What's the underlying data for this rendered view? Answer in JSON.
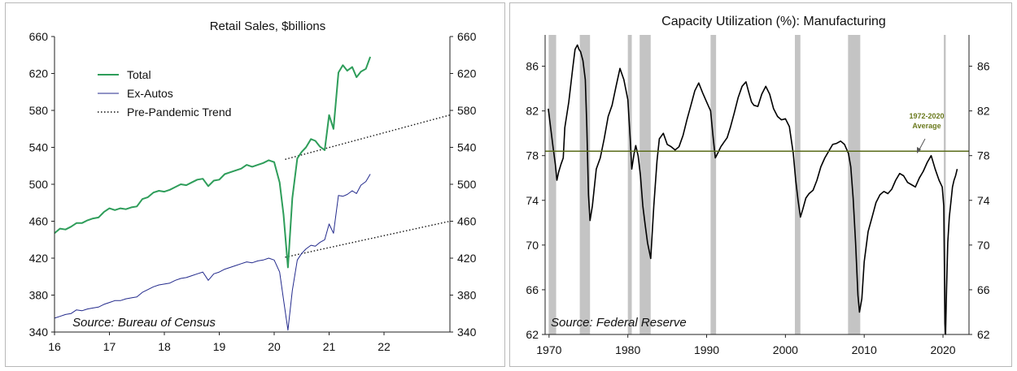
{
  "chart_data": [
    {
      "type": "line",
      "title": "Retail Sales, $billions",
      "source": "Source: Bureau of Census",
      "x_ticks": [
        16,
        17,
        18,
        19,
        20,
        21,
        22
      ],
      "x_tick_labels": [
        "16",
        "17",
        "18",
        "19",
        "20",
        "21",
        "22"
      ],
      "xlim": [
        2016,
        2023.2
      ],
      "ylim": [
        340,
        660
      ],
      "y_ticks": [
        340,
        380,
        420,
        460,
        500,
        540,
        580,
        620,
        660
      ],
      "y_tick_labels": [
        "340",
        "380",
        "420",
        "460",
        "500",
        "540",
        "580",
        "620",
        "660"
      ],
      "grid": false,
      "legend": "top-left",
      "colors": {
        "total": "#2e9d5a",
        "ex_autos": "#232a8c",
        "trend": "#111111"
      },
      "series": [
        {
          "name": "Total",
          "style": "solid",
          "color": "#2e9d5a",
          "x": [
            2016.0,
            2016.1,
            2016.2,
            2016.3,
            2016.4,
            2016.5,
            2016.6,
            2016.7,
            2016.8,
            2016.9,
            2017.0,
            2017.1,
            2017.2,
            2017.3,
            2017.4,
            2017.5,
            2017.6,
            2017.7,
            2017.8,
            2017.9,
            2018.0,
            2018.1,
            2018.2,
            2018.3,
            2018.4,
            2018.5,
            2018.6,
            2018.7,
            2018.8,
            2018.9,
            2019.0,
            2019.1,
            2019.2,
            2019.3,
            2019.4,
            2019.5,
            2019.6,
            2019.7,
            2019.8,
            2019.9,
            2020.0,
            2020.1,
            2020.17,
            2020.25,
            2020.33,
            2020.42,
            2020.5,
            2020.58,
            2020.67,
            2020.75,
            2020.83,
            2020.92,
            2021.0,
            2021.08,
            2021.17,
            2021.25,
            2021.33,
            2021.42,
            2021.5,
            2021.58,
            2021.67,
            2021.75
          ],
          "values": [
            447,
            452,
            451,
            454,
            458,
            458,
            461,
            463,
            464,
            470,
            474,
            472,
            474,
            473,
            475,
            476,
            484,
            486,
            491,
            493,
            492,
            494,
            497,
            500,
            499,
            502,
            505,
            506,
            498,
            504,
            505,
            511,
            513,
            515,
            517,
            521,
            519,
            521,
            523,
            526,
            524,
            502,
            467,
            410,
            485,
            528,
            535,
            540,
            549,
            547,
            541,
            537,
            575,
            560,
            621,
            629,
            623,
            627,
            616,
            622,
            625,
            638
          ]
        },
        {
          "name": "Ex-Autos",
          "style": "solid",
          "color": "#232a8c",
          "x": [
            2016.0,
            2016.1,
            2016.2,
            2016.3,
            2016.4,
            2016.5,
            2016.6,
            2016.7,
            2016.8,
            2016.9,
            2017.0,
            2017.1,
            2017.2,
            2017.3,
            2017.4,
            2017.5,
            2017.6,
            2017.7,
            2017.8,
            2017.9,
            2018.0,
            2018.1,
            2018.2,
            2018.3,
            2018.4,
            2018.5,
            2018.6,
            2018.7,
            2018.8,
            2018.9,
            2019.0,
            2019.1,
            2019.2,
            2019.3,
            2019.4,
            2019.5,
            2019.6,
            2019.7,
            2019.8,
            2019.9,
            2020.0,
            2020.1,
            2020.17,
            2020.25,
            2020.33,
            2020.42,
            2020.5,
            2020.58,
            2020.67,
            2020.75,
            2020.83,
            2020.92,
            2021.0,
            2021.08,
            2021.17,
            2021.25,
            2021.33,
            2021.42,
            2021.5,
            2021.58,
            2021.67,
            2021.75
          ],
          "values": [
            355,
            357,
            359,
            360,
            364,
            363,
            365,
            366,
            367,
            370,
            372,
            374,
            374,
            376,
            377,
            378,
            383,
            386,
            389,
            391,
            392,
            393,
            396,
            398,
            399,
            401,
            403,
            405,
            396,
            403,
            405,
            408,
            410,
            412,
            414,
            416,
            415,
            417,
            418,
            420,
            418,
            405,
            375,
            342,
            385,
            418,
            425,
            430,
            434,
            433,
            437,
            440,
            457,
            447,
            488,
            487,
            489,
            493,
            490,
            499,
            503,
            511
          ]
        },
        {
          "name": "Pre-Pandemic Trend",
          "style": "dotted",
          "color": "#111111",
          "segments": [
            {
              "x": [
                2020.2,
                2023.2
              ],
              "values": [
                527,
                575
              ]
            },
            {
              "x": [
                2020.2,
                2023.2
              ],
              "values": [
                421,
                460
              ]
            }
          ]
        }
      ]
    },
    {
      "type": "line",
      "title": "Capacity Utilization (%): Manufacturing",
      "source": "Source: Federal Reserve",
      "annotation": {
        "lines": [
          "1972-2020",
          "Average"
        ],
        "color": "#6b7a1e"
      },
      "average": {
        "value": 78.4,
        "color": "#5a6b1a"
      },
      "xlim": [
        1969.5,
        2023.3
      ],
      "x_ticks": [
        1970,
        1980,
        1990,
        2000,
        2010,
        2020
      ],
      "x_tick_labels": [
        "1970",
        "1980",
        "1990",
        "2000",
        "2010",
        "2020"
      ],
      "ylim": [
        62,
        88.8
      ],
      "y_ticks": [
        62,
        66,
        70,
        74,
        78,
        82,
        86
      ],
      "y_tick_labels": [
        "62",
        "66",
        "70",
        "74",
        "78",
        "82",
        "86"
      ],
      "grid": false,
      "recessions": [
        [
          1969.95,
          1970.9
        ],
        [
          1973.9,
          1975.2
        ],
        [
          1980.0,
          1980.5
        ],
        [
          1981.5,
          1982.9
        ],
        [
          1990.5,
          1991.2
        ],
        [
          2001.2,
          2001.9
        ],
        [
          2007.95,
          2009.5
        ],
        [
          2020.1,
          2020.35
        ]
      ],
      "recession_color": "#c4c4c4",
      "series": [
        {
          "name": "Capacity Utilization",
          "color": "#000000",
          "x": [
            1969.9,
            1970.2,
            1970.5,
            1970.8,
            1971.0,
            1971.2,
            1971.5,
            1971.8,
            1972.0,
            1972.5,
            1973.0,
            1973.3,
            1973.6,
            1973.8,
            1974.0,
            1974.3,
            1974.6,
            1974.8,
            1975.0,
            1975.2,
            1975.5,
            1976.0,
            1976.5,
            1977.0,
            1977.5,
            1978.0,
            1978.5,
            1979.0,
            1979.5,
            1980.0,
            1980.3,
            1980.5,
            1980.8,
            1981.0,
            1981.3,
            1981.6,
            1981.9,
            1982.2,
            1982.5,
            1982.9,
            1983.3,
            1983.7,
            1984.0,
            1984.5,
            1985.0,
            1985.5,
            1986.0,
            1986.5,
            1987.0,
            1987.5,
            1988.0,
            1988.5,
            1989.0,
            1989.5,
            1990.0,
            1990.5,
            1990.8,
            1991.1,
            1991.4,
            1991.8,
            1992.2,
            1992.6,
            1993.0,
            1993.5,
            1994.0,
            1994.5,
            1995.0,
            1995.3,
            1995.7,
            1996.0,
            1996.5,
            1997.0,
            1997.5,
            1998.0,
            1998.5,
            1999.0,
            1999.5,
            2000.0,
            2000.5,
            2001.0,
            2001.3,
            2001.6,
            2001.9,
            2002.2,
            2002.6,
            2003.0,
            2003.5,
            2004.0,
            2004.5,
            2005.0,
            2005.5,
            2006.0,
            2006.5,
            2007.0,
            2007.5,
            2008.0,
            2008.3,
            2008.6,
            2008.9,
            2009.2,
            2009.4,
            2009.7,
            2010.0,
            2010.5,
            2011.0,
            2011.5,
            2012.0,
            2012.5,
            2013.0,
            2013.5,
            2014.0,
            2014.5,
            2015.0,
            2015.5,
            2016.0,
            2016.5,
            2017.0,
            2017.5,
            2018.0,
            2018.5,
            2019.0,
            2019.5,
            2019.9,
            2020.1,
            2020.25,
            2020.33,
            2020.45,
            2020.6,
            2020.8,
            2021.0,
            2021.2,
            2021.4,
            2021.6,
            2021.8
          ],
          "values": [
            82.2,
            80.5,
            78.8,
            77.2,
            75.8,
            76.5,
            77.2,
            77.8,
            80.5,
            82.8,
            85.8,
            87.5,
            87.9,
            87.5,
            87.3,
            86.5,
            84.8,
            80.5,
            74.5,
            72.2,
            73.5,
            76.8,
            77.8,
            79.5,
            81.5,
            82.5,
            84.2,
            85.8,
            84.8,
            83.0,
            79.5,
            76.8,
            78.2,
            78.9,
            78.0,
            76.2,
            73.5,
            71.8,
            70.2,
            68.8,
            73.5,
            77.5,
            79.5,
            80.0,
            79.0,
            78.8,
            78.5,
            78.8,
            79.8,
            81.2,
            82.5,
            83.8,
            84.5,
            83.6,
            82.8,
            82.0,
            79.8,
            77.8,
            78.2,
            78.8,
            79.2,
            79.6,
            80.5,
            81.8,
            83.2,
            84.2,
            84.6,
            83.8,
            82.8,
            82.5,
            82.4,
            83.5,
            84.2,
            83.5,
            82.2,
            81.5,
            81.2,
            81.3,
            80.6,
            78.2,
            75.8,
            74.0,
            72.5,
            73.2,
            74.2,
            74.6,
            74.9,
            75.8,
            77.0,
            77.8,
            78.4,
            79.0,
            79.1,
            79.3,
            79.0,
            78.2,
            77.0,
            74.2,
            70.2,
            65.5,
            64.0,
            65.2,
            68.5,
            71.2,
            72.5,
            73.8,
            74.5,
            74.8,
            74.6,
            75.0,
            75.8,
            76.4,
            76.2,
            75.6,
            75.4,
            75.2,
            76.0,
            76.6,
            77.4,
            78.0,
            76.8,
            75.8,
            75.2,
            73.5,
            63.0,
            62.0,
            66.0,
            70.2,
            72.5,
            73.8,
            75.2,
            75.8,
            76.2,
            76.8
          ]
        }
      ]
    }
  ]
}
